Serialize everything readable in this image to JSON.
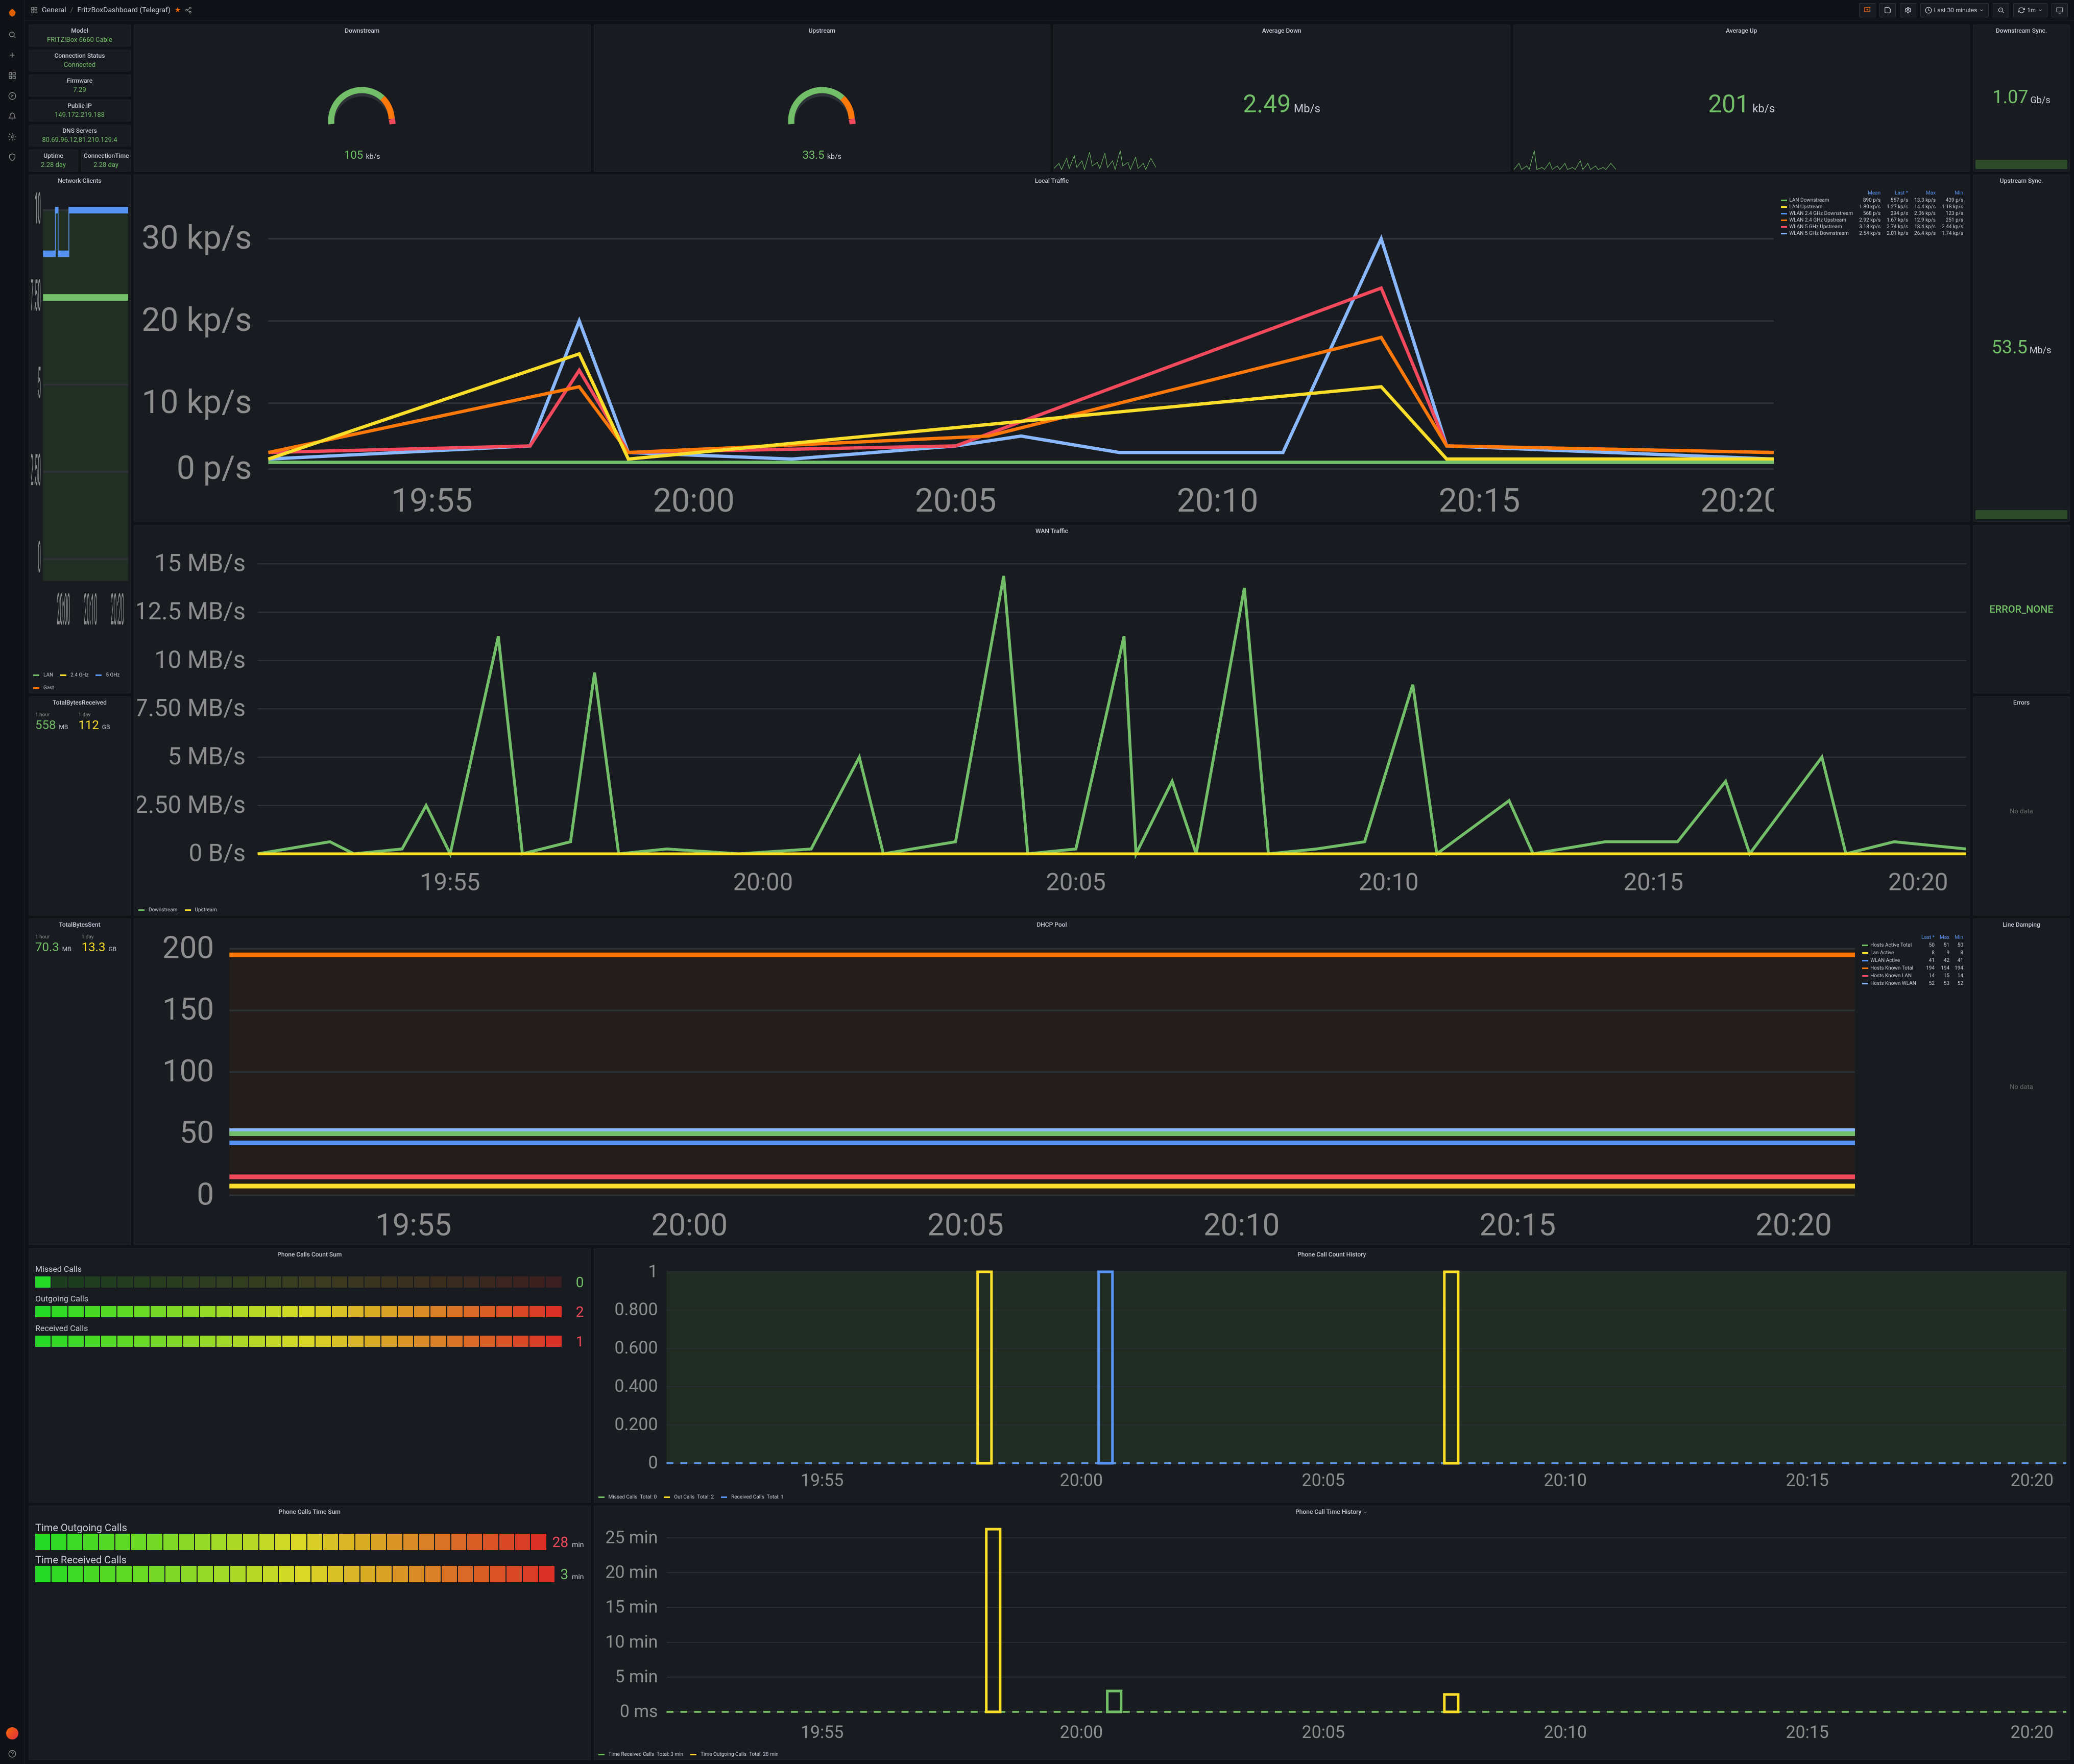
{
  "breadcrumb": {
    "parent": "General",
    "title": "FritzBoxDashboard (Telegraf)"
  },
  "timerange": {
    "label": "Last 30 minutes",
    "refresh": "1m"
  },
  "info": {
    "model_label": "Model",
    "model": "FRITZ!Box 6660 Cable",
    "conn_status_label": "Connection Status",
    "conn_status": "Connected",
    "firmware_label": "Firmware",
    "firmware": "7.29",
    "public_ip_label": "Public IP",
    "public_ip": "149.172.219.188",
    "dns_label": "DNS Servers",
    "dns": "80.69.96.12,81.210.129.4",
    "uptime_label": "Uptime",
    "uptime": "2.28 day",
    "conn_time_label": "ConnectionTime",
    "conn_time": "2.28 day"
  },
  "gauges": {
    "down_label": "Downstream",
    "down_value": "105",
    "down_unit": "kb/s",
    "up_label": "Upstream",
    "up_value": "33.5",
    "up_unit": "kb/s"
  },
  "avg": {
    "down_label": "Average Down",
    "down_value": "2.49",
    "down_unit": "Mb/s",
    "up_label": "Average Up",
    "up_value": "201",
    "up_unit": "kb/s"
  },
  "sync": {
    "down_label": "Downstream Sync.",
    "down_value": "1.07",
    "down_unit": "Gb/s",
    "up_label": "Upstream Sync.",
    "up_value": "53.5",
    "up_unit": "Mb/s"
  },
  "local_traffic": {
    "title": "Local Traffic",
    "y_ticks": [
      "30 kp/s",
      "20 kp/s",
      "10 kp/s",
      "0 p/s"
    ],
    "x_ticks": [
      "19:55",
      "20:00",
      "20:05",
      "20:10",
      "20:15",
      "20:20"
    ],
    "legend_headers": [
      "",
      "Mean",
      "Last *",
      "Max",
      "Min"
    ],
    "series": [
      {
        "name": "LAN Downstream",
        "color": "#73bf69",
        "mean": "890 p/s",
        "last": "557 p/s",
        "max": "13.3 kp/s",
        "min": "439 p/s"
      },
      {
        "name": "LAN Upstream",
        "color": "#fade2a",
        "mean": "1.80 kp/s",
        "last": "1.27 kp/s",
        "max": "14.4 kp/s",
        "min": "1.18 kp/s"
      },
      {
        "name": "WLAN 2.4 GHz Downstream",
        "color": "#5794f2",
        "mean": "568 p/s",
        "last": "294 p/s",
        "max": "2.06 kp/s",
        "min": "123 p/s"
      },
      {
        "name": "WLAN 2.4 GHz Upstream",
        "color": "#ff780a",
        "mean": "2.92 kp/s",
        "last": "1.67 kp/s",
        "max": "12.9 kp/s",
        "min": "251 p/s"
      },
      {
        "name": "WLAN 5 GHz Upstream",
        "color": "#f2495c",
        "mean": "3.18 kp/s",
        "last": "2.74 kp/s",
        "max": "18.4 kp/s",
        "min": "2.44 kp/s"
      },
      {
        "name": "WLAN 5 GHz Downstream",
        "color": "#8ab8ff",
        "mean": "2.54 kp/s",
        "last": "2.01 kp/s",
        "max": "26.4 kp/s",
        "min": "1.74 kp/s"
      }
    ]
  },
  "net_clients": {
    "title": "Network Clients",
    "y_ticks": [
      "10",
      "7.50",
      "5",
      "2.50",
      "0"
    ],
    "x_ticks": [
      "20:00",
      "20:10",
      "20:20"
    ],
    "series": [
      {
        "name": "LAN",
        "color": "#73bf69"
      },
      {
        "name": "2.4 GHz",
        "color": "#fade2a"
      },
      {
        "name": "5 GHz",
        "color": "#5794f2"
      },
      {
        "name": "Gast",
        "color": "#ff780a"
      }
    ]
  },
  "bytes_recv": {
    "title": "TotalBytesReceived",
    "hour_label": "1 hour",
    "hour_val": "558",
    "hour_unit": "MB",
    "day_label": "1 day",
    "day_val": "112",
    "day_unit": "GB"
  },
  "bytes_sent": {
    "title": "TotalBytesSent",
    "hour_label": "1 hour",
    "hour_val": "70.3",
    "hour_unit": "MB",
    "day_label": "1 day",
    "day_val": "13.3",
    "day_unit": "GB"
  },
  "wan_traffic": {
    "title": "WAN Traffic",
    "y_ticks": [
      "15 MB/s",
      "12.5 MB/s",
      "10 MB/s",
      "7.50 MB/s",
      "5 MB/s",
      "2.50 MB/s",
      "0 B/s"
    ],
    "x_ticks": [
      "19:55",
      "20:00",
      "20:05",
      "20:10",
      "20:15",
      "20:20"
    ],
    "series": [
      {
        "name": "Downstream",
        "color": "#73bf69"
      },
      {
        "name": "Upstream",
        "color": "#fade2a"
      }
    ]
  },
  "dhcp": {
    "title": "DHCP Pool",
    "y_ticks": [
      "200",
      "150",
      "100",
      "50",
      "0"
    ],
    "x_ticks": [
      "19:55",
      "20:00",
      "20:05",
      "20:10",
      "20:15",
      "20:20"
    ],
    "legend_headers": [
      "",
      "Last *",
      "Max",
      "Min"
    ],
    "series": [
      {
        "name": "Hosts Active Total",
        "color": "#73bf69",
        "last": "50",
        "max": "51",
        "min": "50"
      },
      {
        "name": "Lan Active",
        "color": "#fade2a",
        "last": "8",
        "max": "9",
        "min": "8"
      },
      {
        "name": "WLAN Active",
        "color": "#5794f2",
        "last": "41",
        "max": "42",
        "min": "41"
      },
      {
        "name": "Hosts Known Total",
        "color": "#ff780a",
        "last": "194",
        "max": "194",
        "min": "194"
      },
      {
        "name": "Hosts Known LAN",
        "color": "#f2495c",
        "last": "14",
        "max": "15",
        "min": "14"
      },
      {
        "name": "Hosts Known WLAN",
        "color": "#8ab8ff",
        "last": "52",
        "max": "53",
        "min": "52"
      }
    ]
  },
  "error_none": "ERROR_NONE",
  "errors_label": "Errors",
  "damping_label": "Line Damping",
  "nodata": "No data",
  "phone_count": {
    "title": "Phone Calls Count Sum",
    "rows": [
      {
        "label": "Missed Calls",
        "value": "0",
        "color": "#73bf69",
        "fill": 1
      },
      {
        "label": "Outgoing Calls",
        "value": "2",
        "color": "#f2495c",
        "fill": 32
      },
      {
        "label": "Received Calls",
        "value": "1",
        "color": "#f2495c",
        "fill": 32
      }
    ]
  },
  "phone_history": {
    "title": "Phone Call Count History",
    "y_ticks": [
      "1",
      "0.800",
      "0.600",
      "0.400",
      "0.200",
      "0"
    ],
    "x_ticks": [
      "19:55",
      "20:00",
      "20:05",
      "20:10",
      "20:15",
      "20:20"
    ],
    "legend": [
      {
        "name": "Missed Calls",
        "total": "Total: 0",
        "color": "#73bf69"
      },
      {
        "name": "Out Calls",
        "total": "Total: 2",
        "color": "#fade2a"
      },
      {
        "name": "Received Calls",
        "total": "Total: 1",
        "color": "#5794f2"
      }
    ]
  },
  "phone_time": {
    "title": "Phone Calls Time Sum",
    "rows": [
      {
        "label": "Time Outgoing Calls",
        "value": "28",
        "unit": "min",
        "color": "#f2495c"
      },
      {
        "label": "Time Received Calls",
        "value": "3",
        "unit": "min",
        "color": "#73bf69"
      }
    ]
  },
  "phone_time_history": {
    "title": "Phone Call Time History",
    "y_ticks": [
      "25 min",
      "20 min",
      "15 min",
      "10 min",
      "5 min",
      "0 ms"
    ],
    "x_ticks": [
      "19:55",
      "20:00",
      "20:05",
      "20:10",
      "20:15",
      "20:20"
    ],
    "legend": [
      {
        "name": "Time Received Calls",
        "total": "Total: 3 min",
        "color": "#73bf69"
      },
      {
        "name": "Time Outgoing Calls",
        "total": "Total: 28 min",
        "color": "#fade2a"
      }
    ]
  },
  "colors": {
    "green": "#73bf69",
    "yellow": "#fade2a",
    "orange": "#ff780a",
    "red": "#f2495c",
    "blue": "#5794f2"
  }
}
